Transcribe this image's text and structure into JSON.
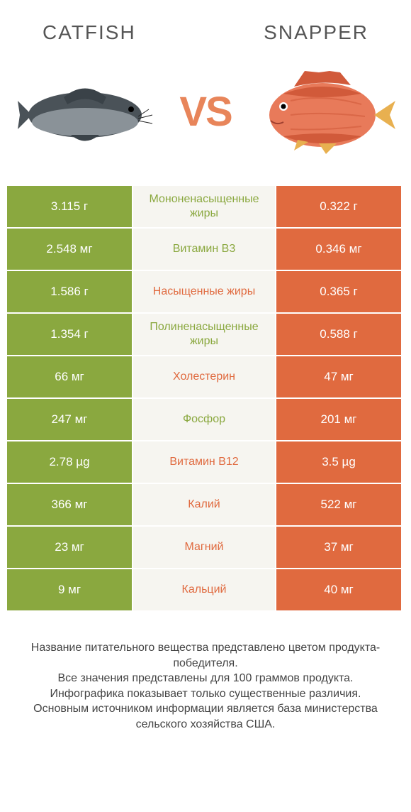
{
  "colors": {
    "green": "#8aa83f",
    "orange": "#e06a3f",
    "midbg": "#f6f5f0",
    "vs": "#e8855a",
    "catfish_body": "#4a5258",
    "catfish_belly": "#8a9298",
    "snapper_body": "#e87a5a",
    "snapper_stripe": "#d15a3a",
    "snapper_fin": "#e8b050"
  },
  "header": {
    "left": "CATFISH",
    "right": "SNAPPER",
    "vs": "VS"
  },
  "rows": [
    {
      "nutrient": "Мононенасыщенные жиры",
      "left": "3.115 г",
      "right": "0.322 г",
      "winner": "left"
    },
    {
      "nutrient": "Витамин B3",
      "left": "2.548 мг",
      "right": "0.346 мг",
      "winner": "left"
    },
    {
      "nutrient": "Насыщенные жиры",
      "left": "1.586 г",
      "right": "0.365 г",
      "winner": "right"
    },
    {
      "nutrient": "Полиненасыщенные жиры",
      "left": "1.354 г",
      "right": "0.588 г",
      "winner": "left"
    },
    {
      "nutrient": "Холестерин",
      "left": "66 мг",
      "right": "47 мг",
      "winner": "right"
    },
    {
      "nutrient": "Фосфор",
      "left": "247 мг",
      "right": "201 мг",
      "winner": "left"
    },
    {
      "nutrient": "Витамин B12",
      "left": "2.78 µg",
      "right": "3.5 µg",
      "winner": "right"
    },
    {
      "nutrient": "Калий",
      "left": "366 мг",
      "right": "522 мг",
      "winner": "right"
    },
    {
      "nutrient": "Магний",
      "left": "23 мг",
      "right": "37 мг",
      "winner": "right"
    },
    {
      "nutrient": "Кальций",
      "left": "9 мг",
      "right": "40 мг",
      "winner": "right"
    }
  ],
  "footer": {
    "line1": "Название питательного вещества представлено цветом продукта-победителя.",
    "line2": "Все значения представлены для 100 граммов продукта.",
    "line3": "Инфографика показывает только существенные различия.",
    "line4": "Основным источником информации является база министерства сельского хозяйства США."
  }
}
